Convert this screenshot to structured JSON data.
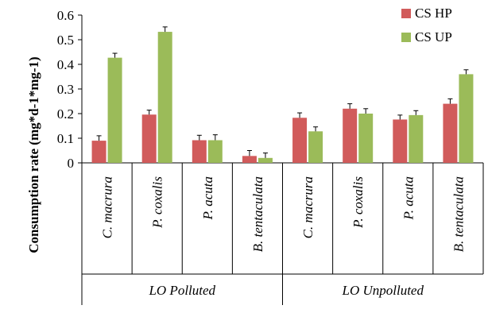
{
  "chart_data": {
    "type": "bar",
    "ylabel": "Consumption rate (mg*d-1*mg-1)",
    "ylim": [
      0,
      0.6
    ],
    "yticks": [
      "0",
      "0.1",
      "0.2",
      "0.3",
      "0.4",
      "0.5",
      "0.6"
    ],
    "categories": [
      "C. macrura",
      "P. coxalis",
      "P. acuta",
      "B. tentaculata",
      "C. macrura",
      "P. coxalis",
      "P. acuta",
      "B. tentaculata"
    ],
    "groups": [
      {
        "label": "LO Polluted",
        "span": [
          0,
          3
        ]
      },
      {
        "label": "LO Unpolluted",
        "span": [
          4,
          7
        ]
      }
    ],
    "legend_position": "top-right",
    "series": [
      {
        "name": "CS HP",
        "color": "#d15b5b",
        "values": [
          0.09,
          0.196,
          0.092,
          0.028,
          0.183,
          0.22,
          0.176,
          0.24
        ],
        "errors": [
          0.02,
          0.018,
          0.02,
          0.022,
          0.02,
          0.02,
          0.018,
          0.02
        ]
      },
      {
        "name": "CS UP",
        "color": "#9bbb59",
        "values": [
          0.427,
          0.532,
          0.092,
          0.02,
          0.128,
          0.2,
          0.194,
          0.36
        ],
        "errors": [
          0.018,
          0.02,
          0.022,
          0.02,
          0.018,
          0.02,
          0.018,
          0.018
        ]
      }
    ]
  }
}
